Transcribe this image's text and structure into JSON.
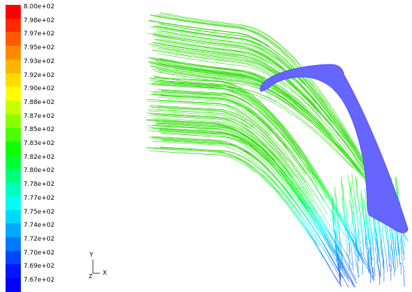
{
  "colorbar": {
    "labels": [
      "8.00e+02",
      "7.98e+02",
      "7.97e+02",
      "7.95e+02",
      "7.93e+02",
      "7.92e+02",
      "7.90e+02",
      "7.88e+02",
      "7.87e+02",
      "7.85e+02",
      "7.83e+02",
      "7.82e+02",
      "7.80e+02",
      "7.78e+02",
      "7.77e+02",
      "7.75e+02",
      "7.74e+02",
      "7.72e+02",
      "7.70e+02",
      "7.69e+02",
      "7.67e+02"
    ],
    "colors": [
      "#ff0000",
      "#ff2a00",
      "#ff5a00",
      "#ff8a00",
      "#ffb400",
      "#ffdc00",
      "#ffff00",
      "#c8ff00",
      "#8aff00",
      "#4cff00",
      "#10ff00",
      "#00ff30",
      "#00ff78",
      "#00ffbe",
      "#00fff0",
      "#00d8ff",
      "#00a8ff",
      "#0078ff",
      "#0046ff",
      "#0016ff",
      "#0000ff"
    ]
  },
  "axes_triad": {
    "y": "Y",
    "z": "Z",
    "x": "X"
  },
  "geometry": {
    "blade_color": "#6666ff"
  }
}
